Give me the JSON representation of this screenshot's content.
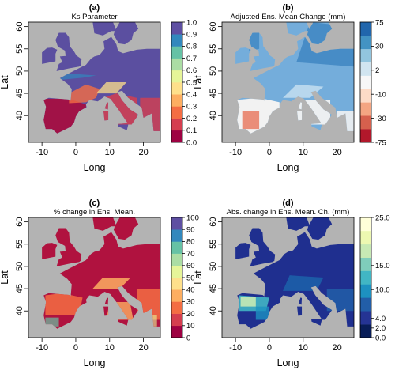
{
  "figure": {
    "background_color": "#b3b3b3",
    "land_color": "#bdbdbd"
  },
  "chart_data": [
    {
      "type": "heatmap",
      "panel": "(a)",
      "title": "Ks Parameter",
      "xlabel": "Long",
      "ylabel": "Lat",
      "xlim": [
        -14,
        25
      ],
      "ylim": [
        34,
        61
      ],
      "xticks": [
        -10,
        0,
        10,
        20
      ],
      "yticks": [
        40,
        45,
        50,
        55,
        60
      ],
      "colorbar": {
        "labels": [
          "0.0",
          "0.1",
          "0.2",
          "0.3",
          "0.4",
          "0.5",
          "0.6",
          "0.7",
          "0.8",
          "0.9",
          "1.0"
        ],
        "colors": [
          "#9e0142",
          "#d53e4f",
          "#f46d43",
          "#fdae61",
          "#fee08b",
          "#e6f598",
          "#abdda4",
          "#66c2a5",
          "#3288bd",
          "#5e4fa2"
        ]
      },
      "dominant_value": "0.9-1.0 over northern and central Europe; 0.0-0.3 over Iberia, southern France, Italy and the Balkans"
    },
    {
      "type": "heatmap",
      "panel": "(b)",
      "title": "Adjusted Ens. Mean Change (mm)",
      "xlabel": "Long",
      "ylabel": "Lat",
      "xlim": [
        -14,
        25
      ],
      "ylim": [
        34,
        61
      ],
      "xticks": [
        -10,
        0,
        10,
        20
      ],
      "yticks": [
        40,
        45,
        50,
        55,
        60
      ],
      "colorbar": {
        "labels": [
          "-75",
          "-30",
          "-10",
          "2",
          "30",
          "75"
        ],
        "colors": [
          "#b2182b",
          "#d6604d",
          "#f4a582",
          "#fddbc7",
          "#f7f7f7",
          "#d1e5f0",
          "#92c5de",
          "#4393c3",
          "#2166ac"
        ]
      },
      "dominant_value": "2-30 mm increase (light blue) in the north; near zero to -30 mm (white to red) in Iberia and the Mediterranean"
    },
    {
      "type": "heatmap",
      "panel": "(c)",
      "title": "% change in Ens. Mean.",
      "xlabel": "Long",
      "ylabel": "Lat",
      "xlim": [
        -14,
        25
      ],
      "ylim": [
        34,
        61
      ],
      "xticks": [
        -10,
        0,
        10,
        20
      ],
      "yticks": [
        40,
        45,
        50,
        55,
        60
      ],
      "colorbar": {
        "labels": [
          "0",
          "10",
          "20",
          "30",
          "40",
          "50",
          "60",
          "70",
          "80",
          "90",
          "100"
        ],
        "colors": [
          "#9e0142",
          "#d53e4f",
          "#f46d43",
          "#fdae61",
          "#fee08b",
          "#e6f598",
          "#abdda4",
          "#66c2a5",
          "#3288bd",
          "#5e4fa2"
        ]
      },
      "dominant_value": "0-10 % over most of Europe; higher values along the Alps, Iberia and the Balkans"
    },
    {
      "type": "heatmap",
      "panel": "(d)",
      "title": "Abs. change in Ens. Mean. Ch. (mm)",
      "xlabel": "Long",
      "ylabel": "Lat",
      "xlim": [
        -14,
        25
      ],
      "ylim": [
        34,
        61
      ],
      "xticks": [
        -10,
        0,
        10,
        20
      ],
      "yticks": [
        40,
        45,
        50,
        55,
        60
      ],
      "colorbar": {
        "labels": [
          "0.0",
          "2.0",
          "4.0",
          "10.0",
          "15.0",
          "25.0"
        ],
        "values": [
          0,
          2,
          4,
          10,
          15,
          25
        ],
        "colors": [
          "#081d58",
          "#253494",
          "#225ea8",
          "#1d91c0",
          "#41b6c4",
          "#7fcdbb",
          "#c7e9b4",
          "#edf8b1",
          "#ffffd9"
        ]
      },
      "dominant_value": "0-2 mm over northern Europe; up to 15-25 mm in northern Iberia and the Alps"
    }
  ]
}
